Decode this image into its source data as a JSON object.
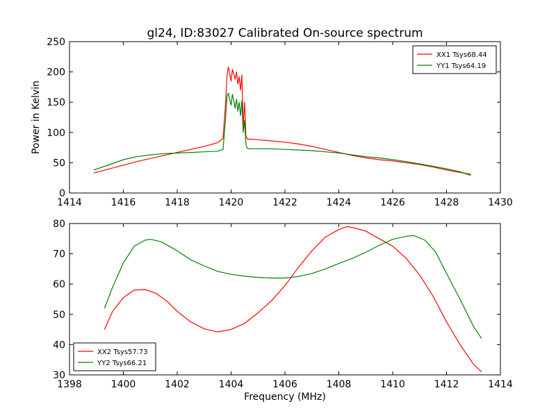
{
  "figure": {
    "title": "gl24, ID:83027 Calibrated On-source spectrum",
    "xlabel": "Frequency (MHz)",
    "ylabel_top": "Power in Kelvin"
  },
  "chart_data": [
    {
      "type": "line",
      "title": "gl24, ID:83027 Calibrated On-source spectrum",
      "xlabel": "",
      "ylabel": "Power in Kelvin",
      "xlim": [
        1414,
        1430
      ],
      "ylim": [
        0,
        250
      ],
      "xticks": [
        1414,
        1416,
        1418,
        1420,
        1422,
        1424,
        1426,
        1428,
        1430
      ],
      "yticks": [
        0,
        50,
        100,
        150,
        200,
        250
      ],
      "legend_position": "top-right",
      "series": [
        {
          "name": "XX1 Tsys68.44",
          "color": "#ff0000",
          "x": [
            1414.9,
            1415.5,
            1416.0,
            1416.5,
            1417.0,
            1417.5,
            1418.0,
            1418.5,
            1419.0,
            1419.5,
            1419.7,
            1419.8,
            1419.85,
            1419.9,
            1420.0,
            1420.05,
            1420.1,
            1420.15,
            1420.2,
            1420.25,
            1420.3,
            1420.35,
            1420.4,
            1420.45,
            1420.5,
            1420.55,
            1420.6,
            1420.7,
            1421.0,
            1421.5,
            1422.0,
            1422.5,
            1423.0,
            1423.5,
            1424.0,
            1424.5,
            1425.0,
            1425.5,
            1426.0,
            1426.5,
            1427.0,
            1427.5,
            1428.0,
            1428.5,
            1428.9
          ],
          "y": [
            33,
            40,
            46,
            52,
            57,
            62,
            67,
            72,
            77,
            83,
            90,
            150,
            195,
            208,
            185,
            204,
            196,
            188,
            200,
            180,
            192,
            170,
            195,
            110,
            150,
            95,
            89,
            89,
            88,
            86,
            84,
            81,
            77,
            72,
            67,
            62,
            58,
            55,
            53,
            50,
            47,
            43,
            38,
            34,
            31
          ]
        },
        {
          "name": "YY1 Tsys64.19",
          "color": "#008000",
          "x": [
            1414.9,
            1415.5,
            1416.0,
            1416.5,
            1417.0,
            1417.5,
            1418.0,
            1418.5,
            1419.0,
            1419.5,
            1419.7,
            1419.8,
            1419.85,
            1419.9,
            1420.0,
            1420.05,
            1420.1,
            1420.15,
            1420.2,
            1420.25,
            1420.3,
            1420.35,
            1420.4,
            1420.45,
            1420.5,
            1420.55,
            1420.6,
            1420.7,
            1421.0,
            1421.5,
            1422.0,
            1422.5,
            1423.0,
            1423.5,
            1424.0,
            1424.5,
            1425.0,
            1425.5,
            1426.0,
            1426.5,
            1427.0,
            1427.5,
            1428.0,
            1428.5,
            1428.9
          ],
          "y": [
            38,
            47,
            55,
            60,
            63,
            65,
            66,
            67,
            68,
            69,
            72,
            125,
            160,
            165,
            145,
            163,
            152,
            140,
            155,
            135,
            150,
            128,
            152,
            100,
            120,
            80,
            74,
            73,
            73,
            73,
            72,
            71,
            70,
            68,
            66,
            63,
            60,
            58,
            55,
            52,
            48,
            44,
            40,
            35,
            29
          ]
        }
      ]
    },
    {
      "type": "line",
      "title": "",
      "xlabel": "Frequency (MHz)",
      "ylabel": "",
      "xlim": [
        1398,
        1414
      ],
      "ylim": [
        30,
        80
      ],
      "xticks": [
        1398,
        1400,
        1402,
        1404,
        1406,
        1408,
        1410,
        1412,
        1414
      ],
      "yticks": [
        30,
        40,
        50,
        60,
        70,
        80
      ],
      "legend_position": "bottom-left",
      "series": [
        {
          "name": "XX2 Tsys57.73",
          "color": "#ff0000",
          "x": [
            1399.3,
            1399.6,
            1400.0,
            1400.4,
            1400.8,
            1401.2,
            1401.6,
            1402.0,
            1402.5,
            1403.0,
            1403.5,
            1404.0,
            1404.5,
            1405.0,
            1405.5,
            1406.0,
            1406.5,
            1407.0,
            1407.5,
            1408.0,
            1408.3,
            1408.6,
            1409.0,
            1409.5,
            1410.0,
            1410.5,
            1411.0,
            1411.5,
            1412.0,
            1412.5,
            1413.0,
            1413.3
          ],
          "y": [
            45,
            51,
            55.5,
            58,
            58.2,
            57,
            54.5,
            51,
            47.5,
            45.2,
            44.2,
            45,
            47,
            50.5,
            54.5,
            59.5,
            65.5,
            71,
            75.5,
            78,
            79,
            78.5,
            77.5,
            75,
            72.5,
            68.5,
            63,
            56,
            47.5,
            40,
            33.5,
            31
          ]
        },
        {
          "name": "YY2 Tsys66.21",
          "color": "#008000",
          "x": [
            1399.3,
            1399.6,
            1400.0,
            1400.4,
            1400.8,
            1401.0,
            1401.4,
            1402.0,
            1402.5,
            1403.0,
            1403.5,
            1404.0,
            1404.5,
            1405.0,
            1405.5,
            1406.0,
            1406.5,
            1407.0,
            1407.5,
            1408.0,
            1408.5,
            1409.0,
            1409.5,
            1410.0,
            1410.5,
            1410.8,
            1411.2,
            1411.6,
            1412.0,
            1412.5,
            1413.0,
            1413.3
          ],
          "y": [
            52,
            59,
            67,
            72.5,
            74.5,
            74.8,
            74,
            71,
            68,
            66,
            64.2,
            63.2,
            62.6,
            62.2,
            62,
            62,
            62.5,
            63.5,
            65,
            66.8,
            68.5,
            70.5,
            72.8,
            74.8,
            75.8,
            76,
            74.5,
            70.5,
            63.5,
            55,
            46,
            42
          ]
        }
      ]
    }
  ]
}
